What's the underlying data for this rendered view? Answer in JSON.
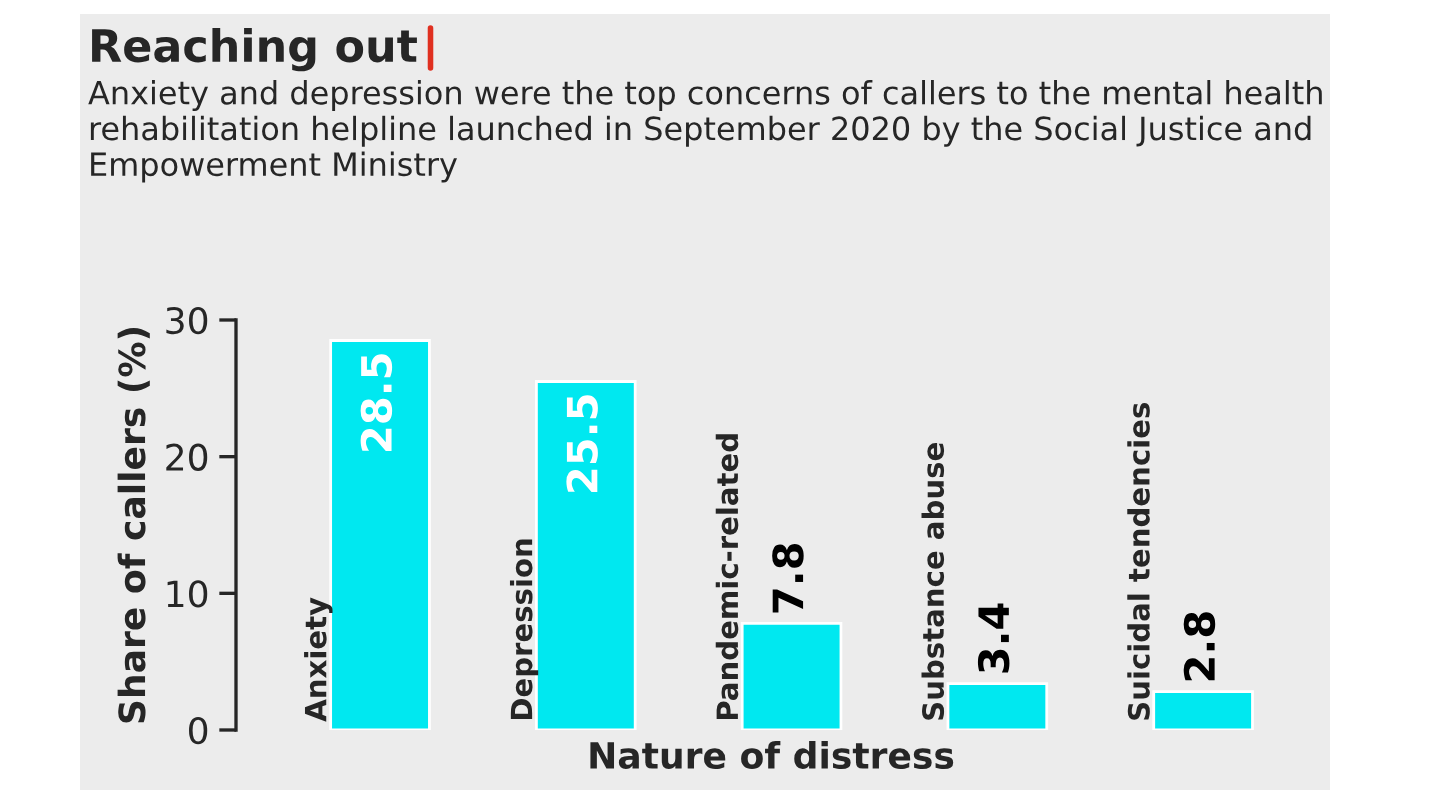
{
  "chart_data": {
    "type": "bar",
    "title": "Reaching out",
    "subtitle": "Anxiety and depression were the top concerns of callers to the mental health rehabilitation helpline launched in September 2020 by the Social Justice and Empowerment Ministry",
    "xlabel": "Nature of distress",
    "ylabel": "Share of callers (%)",
    "categories": [
      "Anxiety",
      "Depression",
      "Pandemic-related",
      "Substance abuse",
      "Suicidal tendencies"
    ],
    "values": [
      28.5,
      25.5,
      7.8,
      3.4,
      2.8
    ],
    "color": "#00e8f0",
    "ylim": [
      0,
      30
    ],
    "yticks": [
      0,
      10,
      20,
      30
    ],
    "data_labels": true,
    "grid": false,
    "legend": false
  }
}
